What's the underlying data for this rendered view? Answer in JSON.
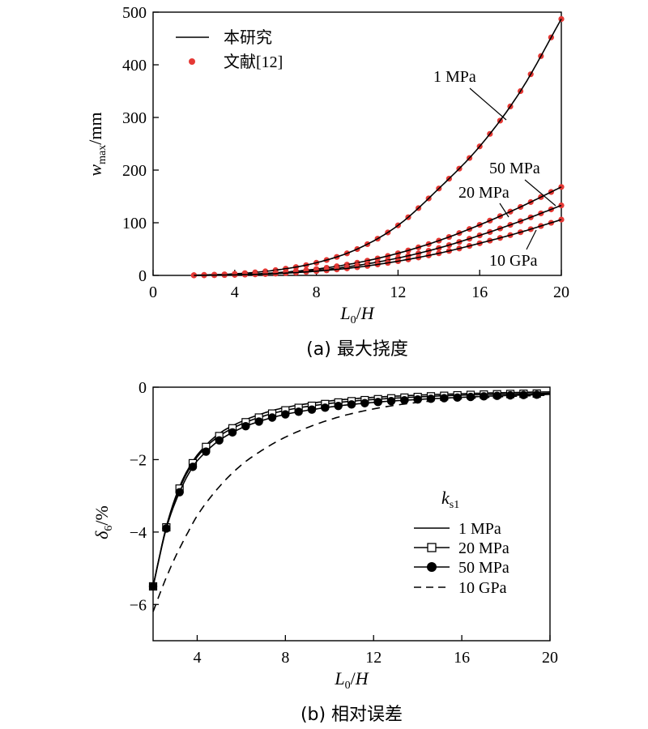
{
  "chart_data": [
    {
      "type": "line",
      "caption": "(a) 最大挠度",
      "xlabel": "L0/H",
      "ylabel": "wmax/mm",
      "xlim": [
        0,
        20
      ],
      "ylim": [
        0,
        500
      ],
      "xticks": [
        0,
        4,
        8,
        12,
        16,
        20
      ],
      "yticks": [
        0,
        100,
        200,
        300,
        400,
        500
      ],
      "legend": {
        "placement": "top-left",
        "entries": [
          {
            "label": "本研究",
            "style": "solid line"
          },
          {
            "label": "文献[12]",
            "style": "red dots"
          }
        ]
      },
      "series": [
        {
          "name": "1 MPa",
          "x": [
            2,
            4,
            6,
            8,
            10,
            12,
            14,
            16,
            18,
            20
          ],
          "y": [
            0.4,
            3,
            10,
            24,
            50,
            95,
            165,
            245,
            350,
            487
          ]
        },
        {
          "name": "20 MPa",
          "x": [
            2,
            4,
            6,
            8,
            10,
            12,
            14,
            16,
            18,
            20
          ],
          "y": [
            0.2,
            1.5,
            5,
            12,
            24,
            42,
            66,
            96,
            130,
            168
          ]
        },
        {
          "name": "50 MPa",
          "x": [
            2,
            4,
            6,
            8,
            10,
            12,
            14,
            16,
            18,
            20
          ],
          "y": [
            0.2,
            1.2,
            4,
            9.5,
            19,
            33,
            52,
            76,
            103,
            133
          ]
        },
        {
          "name": "10 GPa",
          "x": [
            2,
            4,
            6,
            8,
            10,
            12,
            14,
            16,
            18,
            20
          ],
          "y": [
            0.1,
            1,
            3.3,
            8,
            15.5,
            27,
            42,
            61,
            82,
            106
          ]
        }
      ],
      "annotations": [
        "1 MPa",
        "50 MPa",
        "20 MPa",
        "10 GPa"
      ]
    },
    {
      "type": "line",
      "caption": "(b) 相对误差",
      "xlabel": "L0/H",
      "ylabel": "δ6/%",
      "xlim": [
        2,
        20
      ],
      "ylim": [
        -7,
        0
      ],
      "xticks": [
        4,
        8,
        12,
        16,
        20
      ],
      "yticks": [
        0,
        -2,
        -4,
        -6
      ],
      "legend": {
        "placement": "bottom-right",
        "title": "ks1",
        "entries": [
          {
            "label": "1 MPa",
            "style": "solid line"
          },
          {
            "label": "20 MPa",
            "style": "line with open squares"
          },
          {
            "label": "50 MPa",
            "style": "line with filled circles"
          },
          {
            "label": "10 GPa",
            "style": "dashed line"
          }
        ]
      },
      "series": [
        {
          "name": "1 MPa",
          "x": [
            2,
            2.6,
            3.2,
            3.8,
            4.4,
            5,
            6,
            7,
            8,
            10,
            12,
            14,
            16,
            18,
            20
          ],
          "y": [
            -5.5,
            -3.85,
            -2.75,
            -2.05,
            -1.6,
            -1.28,
            -0.95,
            -0.72,
            -0.56,
            -0.38,
            -0.28,
            -0.22,
            -0.18,
            -0.15,
            -0.13
          ]
        },
        {
          "name": "20 MPa",
          "x": [
            2,
            2.6,
            3.2,
            3.8,
            4.4,
            5,
            6,
            7,
            8,
            10,
            12,
            14,
            16,
            18,
            20
          ],
          "y": [
            -5.5,
            -3.87,
            -2.8,
            -2.1,
            -1.65,
            -1.35,
            -1.02,
            -0.8,
            -0.64,
            -0.45,
            -0.34,
            -0.27,
            -0.22,
            -0.19,
            -0.17
          ]
        },
        {
          "name": "50 MPa",
          "x": [
            2,
            2.6,
            3.2,
            3.8,
            4.4,
            5,
            6,
            7,
            8,
            10,
            12,
            14,
            16,
            18,
            20
          ],
          "y": [
            -5.5,
            -3.9,
            -2.9,
            -2.2,
            -1.78,
            -1.47,
            -1.13,
            -0.91,
            -0.75,
            -0.55,
            -0.42,
            -0.34,
            -0.28,
            -0.23,
            -0.2
          ]
        },
        {
          "name": "10 GPa",
          "x": [
            2,
            2.5,
            3,
            3.5,
            4,
            5,
            6,
            7,
            8,
            10,
            12,
            14,
            16,
            18,
            20
          ],
          "y": [
            -6.2,
            -5.4,
            -4.7,
            -4.1,
            -3.55,
            -2.75,
            -2.15,
            -1.72,
            -1.38,
            -0.9,
            -0.6,
            -0.42,
            -0.32,
            -0.26,
            -0.22
          ]
        }
      ]
    }
  ]
}
